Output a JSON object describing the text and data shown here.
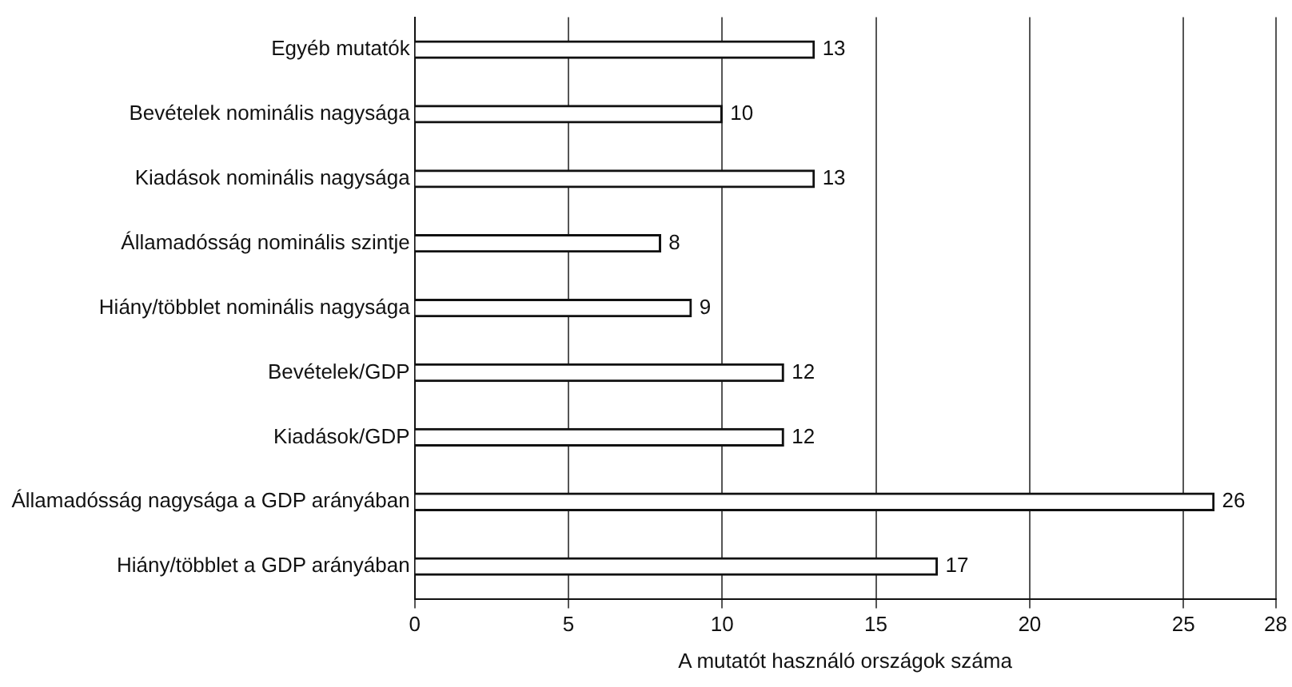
{
  "chart_data": {
    "type": "bar",
    "orientation": "horizontal",
    "xlabel": "A mutatót használó országok száma",
    "categories": [
      "Egyéb mutatók",
      "Bevételek nominális nagysága",
      "Kiadások nominális nagysága",
      "Államadósság nominális szintje",
      "Hiány/többlet nominális nagysága",
      "Bevételek/GDP",
      "Kiadások/GDP",
      "Államadósság nagysága a GDP arányában",
      "Hiány/többlet a GDP arányában"
    ],
    "values": [
      13,
      10,
      13,
      8,
      9,
      12,
      12,
      26,
      17
    ],
    "color": "#ffffff",
    "xlim": [
      0,
      28
    ],
    "xticks": [
      0,
      5,
      10,
      15,
      20,
      25,
      28
    ],
    "grid": "x",
    "data_labels": true
  }
}
